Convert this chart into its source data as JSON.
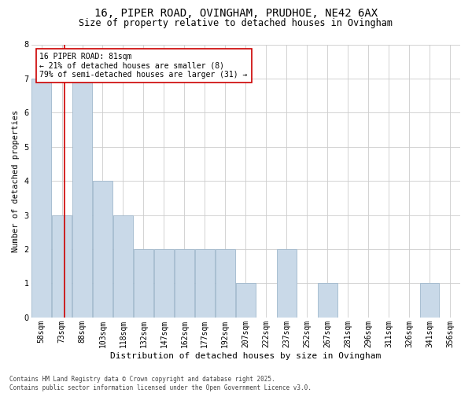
{
  "title_line1": "16, PIPER ROAD, OVINGHAM, PRUDHOE, NE42 6AX",
  "title_line2": "Size of property relative to detached houses in Ovingham",
  "xlabel": "Distribution of detached houses by size in Ovingham",
  "ylabel": "Number of detached properties",
  "footnote": "Contains HM Land Registry data © Crown copyright and database right 2025.\nContains public sector information licensed under the Open Government Licence v3.0.",
  "bin_labels": [
    "58sqm",
    "73sqm",
    "88sqm",
    "103sqm",
    "118sqm",
    "132sqm",
    "147sqm",
    "162sqm",
    "177sqm",
    "192sqm",
    "207sqm",
    "222sqm",
    "237sqm",
    "252sqm",
    "267sqm",
    "281sqm",
    "296sqm",
    "311sqm",
    "326sqm",
    "341sqm",
    "356sqm"
  ],
  "bar_heights": [
    7,
    3,
    7,
    4,
    3,
    2,
    2,
    2,
    2,
    2,
    1,
    0,
    2,
    0,
    1,
    0,
    0,
    0,
    0,
    1,
    0
  ],
  "bar_color": "#c9d9e8",
  "bar_edgecolor": "#a0b8cc",
  "grid_color": "#cccccc",
  "ylim": [
    0,
    8
  ],
  "yticks": [
    0,
    1,
    2,
    3,
    4,
    5,
    6,
    7,
    8
  ],
  "property_line_x": 1.15,
  "property_line_color": "#cc0000",
  "annotation_text": "16 PIPER ROAD: 81sqm\n← 21% of detached houses are smaller (8)\n79% of semi-detached houses are larger (31) →",
  "annotation_box_color": "#ffffff",
  "annotation_box_edgecolor": "#cc0000",
  "bg_color": "#ffffff",
  "title_fontsize": 10,
  "subtitle_fontsize": 8.5,
  "xlabel_fontsize": 8,
  "ylabel_fontsize": 7.5,
  "tick_fontsize": 7,
  "annot_fontsize": 7,
  "footnote_fontsize": 5.5
}
